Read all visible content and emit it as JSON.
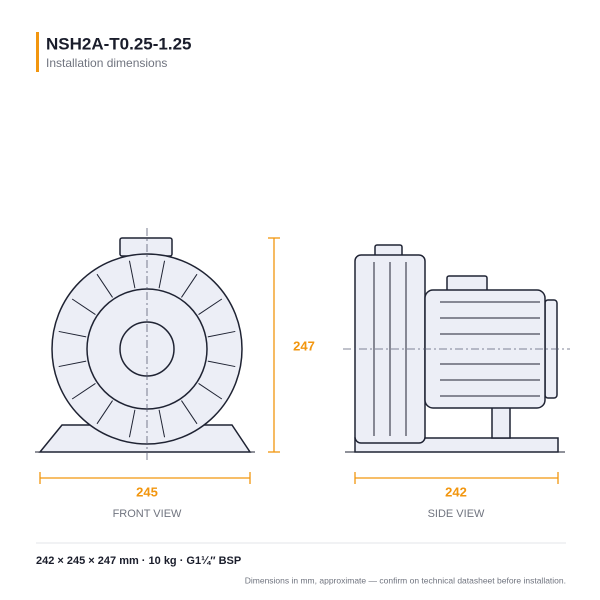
{
  "header": {
    "title": "NSH2A-T0.25-1.25",
    "subtitle": "Installation dimensions"
  },
  "front_view": {
    "height": 247,
    "width": 245,
    "label": "FRONT VIEW"
  },
  "side_view": {
    "depth": 242,
    "label": "SIDE VIEW"
  },
  "footer": {
    "specs": "242 × 245 × 247 mm · 10 kg · G1¼″ BSP",
    "note": "Dimensions in mm, approximate — confirm on technical datasheet before installation."
  }
}
